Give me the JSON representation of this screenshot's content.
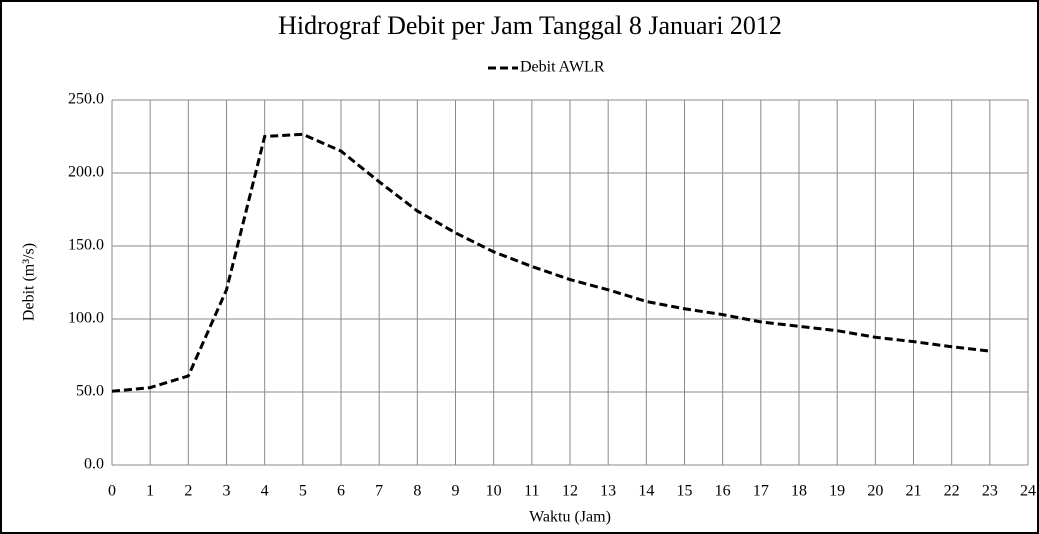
{
  "chart_data": {
    "type": "line",
    "title": "Hidrograf Debit per Jam Tanggal 8 Januari 2012",
    "x_label": "Waktu (Jam)",
    "y_label": "Debit (m³/s)",
    "x": [
      0,
      1,
      2,
      3,
      4,
      5,
      6,
      7,
      8,
      9,
      10,
      11,
      12,
      13,
      14,
      15,
      16,
      17,
      18,
      19,
      20,
      21,
      22,
      23
    ],
    "series": [
      {
        "name": "Debit AWLR",
        "color": "#000000",
        "values": [
          50.5,
          53,
          61,
          120,
          225,
          226.5,
          215,
          194,
          174,
          159,
          146,
          136,
          127,
          120,
          112,
          107,
          103,
          98,
          95,
          92,
          87.5,
          84.5,
          81,
          78
        ]
      }
    ],
    "xlim": [
      0,
      24
    ],
    "xticks": [
      0,
      1,
      2,
      3,
      4,
      5,
      6,
      7,
      8,
      9,
      10,
      11,
      12,
      13,
      14,
      15,
      16,
      17,
      18,
      19,
      20,
      21,
      22,
      23,
      24
    ],
    "ylim": [
      0,
      250
    ],
    "yticks": [
      {
        "value": 0,
        "label": "0.0"
      },
      {
        "value": 50,
        "label": "50.0"
      },
      {
        "value": 100,
        "label": "100.0"
      },
      {
        "value": 150,
        "label": "150.0"
      },
      {
        "value": 200,
        "label": "200.0"
      },
      {
        "value": 250,
        "label": "250.0"
      }
    ],
    "grid": true,
    "legend": "top"
  }
}
